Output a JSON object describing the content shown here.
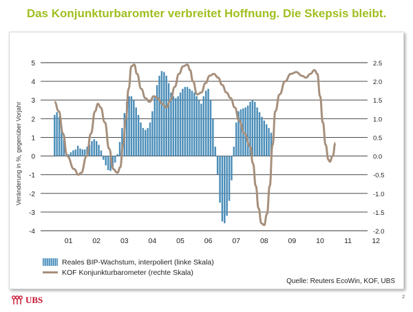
{
  "title": "Das Konjunkturbaromter verbreitet Hoffnung. Die Skepsis bleibt.",
  "chart_data": {
    "type": "bar+line",
    "ylabel": "Veränderung in %, gegenüber Vorjahr",
    "left_axis": {
      "ylim": [
        -4,
        5
      ],
      "ticks": [
        "5",
        "4",
        "3",
        "2",
        "1",
        "0",
        "-1",
        "-2",
        "-3",
        "-4"
      ]
    },
    "right_axis": {
      "ylim": [
        -2.0,
        2.5
      ],
      "ticks": [
        "2.5",
        "2.0",
        "1.5",
        "1.0",
        "0.5",
        "0.0",
        "-0.5",
        "-1.0",
        "-1.5",
        "-2.0"
      ]
    },
    "x_tick_labels": [
      "01",
      "02",
      "03",
      "04",
      "05",
      "06",
      "07",
      "08",
      "09",
      "10",
      "11",
      "12"
    ],
    "grid": "horizontal, dark",
    "series": [
      {
        "name": "Reales BIP-Wachstum, interpoliert (linke Skala)",
        "axis": "left",
        "kind": "bar",
        "color": "#4a8db8",
        "monthly_values_from_2001_01": [
          2.2,
          2.35,
          2.1,
          1.6,
          0.9,
          0.2,
          0.1,
          0.2,
          0.3,
          0.35,
          0.55,
          0.4,
          0.35,
          0.35,
          0.5,
          0.6,
          0.8,
          0.9,
          0.8,
          0.6,
          0.3,
          -0.2,
          -0.5,
          -0.75,
          -0.8,
          -0.7,
          -0.35,
          0.1,
          0.75,
          1.5,
          2.3,
          2.9,
          3.2,
          3.2,
          3.0,
          2.6,
          2.2,
          1.8,
          1.5,
          1.4,
          1.5,
          1.8,
          2.4,
          3.2,
          3.8,
          4.3,
          4.55,
          4.5,
          4.3,
          3.9,
          3.4,
          3.2,
          3.1,
          3.2,
          3.4,
          3.6,
          3.7,
          3.7,
          3.6,
          3.5,
          3.4,
          3.2,
          3.0,
          2.8,
          3.2,
          3.5,
          3.6,
          3.0,
          2.0,
          0.5,
          -1.0,
          -2.5,
          -3.5,
          -3.6,
          -3.2,
          -2.4,
          -1.3,
          0.5,
          1.8,
          2.4,
          2.5,
          2.55,
          2.6,
          2.7,
          2.9,
          3.0,
          2.9,
          2.6,
          2.35,
          2.1,
          1.9,
          1.7,
          1.5,
          1.25
        ]
      },
      {
        "name": "KOF Konjunkturbarometer (rechte Skala)",
        "axis": "right",
        "kind": "line",
        "color": "#a68f7c",
        "points_year_value": [
          [
            2001.0,
            1.45
          ],
          [
            2001.15,
            1.2
          ],
          [
            2001.3,
            0.6
          ],
          [
            2001.45,
            0.0
          ],
          [
            2001.7,
            -0.35
          ],
          [
            2001.85,
            -0.5
          ],
          [
            2001.95,
            -0.45
          ],
          [
            2002.15,
            0.0
          ],
          [
            2002.3,
            0.6
          ],
          [
            2002.45,
            1.2
          ],
          [
            2002.55,
            1.4
          ],
          [
            2002.65,
            1.3
          ],
          [
            2002.8,
            0.9
          ],
          [
            2002.95,
            0.2
          ],
          [
            2003.1,
            -0.35
          ],
          [
            2003.25,
            -0.45
          ],
          [
            2003.35,
            -0.3
          ],
          [
            2003.45,
            0.3
          ],
          [
            2003.55,
            1.0
          ],
          [
            2003.65,
            1.8
          ],
          [
            2003.75,
            2.4
          ],
          [
            2003.85,
            2.45
          ],
          [
            2003.95,
            2.2
          ],
          [
            2004.1,
            1.8
          ],
          [
            2004.25,
            1.55
          ],
          [
            2004.4,
            1.45
          ],
          [
            2004.55,
            1.6
          ],
          [
            2004.7,
            1.55
          ],
          [
            2004.85,
            1.4
          ],
          [
            2005.0,
            1.3
          ],
          [
            2005.15,
            1.5
          ],
          [
            2005.3,
            1.85
          ],
          [
            2005.45,
            2.2
          ],
          [
            2005.6,
            2.4
          ],
          [
            2005.75,
            2.45
          ],
          [
            2005.85,
            2.3
          ],
          [
            2005.95,
            2.0
          ],
          [
            2006.1,
            1.65
          ],
          [
            2006.25,
            1.7
          ],
          [
            2006.4,
            1.95
          ],
          [
            2006.55,
            2.15
          ],
          [
            2006.7,
            2.2
          ],
          [
            2006.85,
            2.1
          ],
          [
            2007.0,
            1.9
          ],
          [
            2007.15,
            1.7
          ],
          [
            2007.3,
            1.55
          ],
          [
            2007.45,
            1.3
          ],
          [
            2007.6,
            0.95
          ],
          [
            2007.8,
            0.6
          ],
          [
            2008.0,
            0.25
          ],
          [
            2008.1,
            -0.2
          ],
          [
            2008.2,
            -0.8
          ],
          [
            2008.3,
            -1.4
          ],
          [
            2008.4,
            -1.8
          ],
          [
            2008.5,
            -1.85
          ],
          [
            2008.6,
            -1.55
          ],
          [
            2008.7,
            -0.8
          ],
          [
            2008.8,
            0.3
          ],
          [
            2008.9,
            1.2
          ],
          [
            2009.05,
            1.65
          ],
          [
            2009.25,
            2.0
          ],
          [
            2009.45,
            2.2
          ],
          [
            2009.65,
            2.25
          ],
          [
            2009.85,
            2.15
          ],
          [
            2010.0,
            2.1
          ],
          [
            2010.15,
            2.2
          ],
          [
            2010.3,
            2.3
          ],
          [
            2010.4,
            2.2
          ],
          [
            2010.5,
            1.6
          ],
          [
            2010.6,
            0.9
          ],
          [
            2010.7,
            0.3
          ],
          [
            2010.8,
            -0.1
          ],
          [
            2010.85,
            -0.15
          ],
          [
            2010.95,
            0.0
          ],
          [
            2011.05,
            0.35
          ]
        ]
      }
    ],
    "source": "Quelle: Reuters EcoWin, KOF, UBS"
  },
  "legend": {
    "bar_label": "Reales BIP-Wachstum, interpoliert (linke Skala)",
    "line_label": "KOF Konjunkturbarometer (rechte Skala)"
  },
  "footer": {
    "logo_text": "UBS",
    "page_number": "2"
  }
}
